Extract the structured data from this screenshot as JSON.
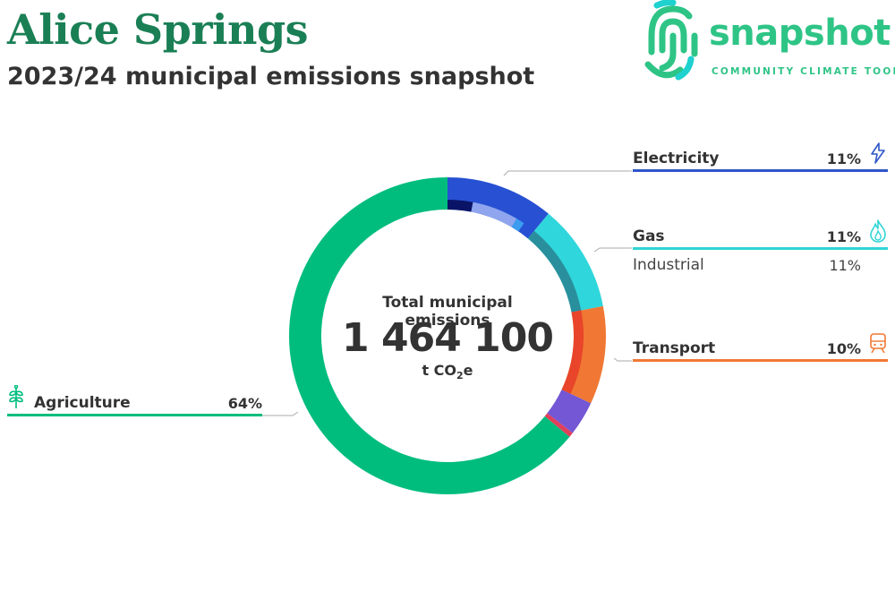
{
  "header": {
    "title": "Alice Springs",
    "subtitle": "2023/24 municipal emissions snapshot"
  },
  "logo": {
    "word": "snapshot",
    "tagline": "COMMUNITY CLIMATE TOOL"
  },
  "center": {
    "title": "Total municipal emissions",
    "value": "1 464 100",
    "unit_prefix": "t CO",
    "unit_sub": "2",
    "unit_suffix": "e"
  },
  "categories": {
    "electricity": {
      "label": "Electricity",
      "pct": "11%",
      "color": "#2e55c9",
      "icon": "lightning-icon"
    },
    "gas": {
      "label": "Gas",
      "pct": "11%",
      "color": "#30d5d5",
      "icon": "flame-icon",
      "sub": {
        "label": "Industrial",
        "pct": "11%"
      }
    },
    "transport": {
      "label": "Transport",
      "pct": "10%",
      "color": "#f07834",
      "icon": "train-icon"
    },
    "agriculture": {
      "label": "Agriculture",
      "pct": "64%",
      "color": "#00bd7e",
      "icon": "plant-icon"
    }
  },
  "chart_data": {
    "type": "pie",
    "title": "Total municipal emissions",
    "total": 1464100,
    "unit": "t CO2e",
    "series": [
      {
        "name": "Electricity",
        "value": 11,
        "color": "#2751d2"
      },
      {
        "name": "Gas",
        "value": 11,
        "color": "#2fd6dc"
      },
      {
        "name": "Transport",
        "value": 10,
        "color": "#f07834"
      },
      {
        "name": "",
        "value": 3.5,
        "color": "#7357d4"
      },
      {
        "name": "",
        "value": 0.5,
        "color": "#e0405a"
      },
      {
        "name": "Agriculture",
        "value": 64,
        "color": "#00bd7e"
      }
    ],
    "inner_rings": [
      {
        "parent": "Electricity",
        "segments": [
          {
            "value": 3.0,
            "color": "#0a1466"
          },
          {
            "value": 5.5,
            "color": "#8fa6ee"
          },
          {
            "value": 1.0,
            "color": "#3b9cf0"
          }
        ]
      },
      {
        "parent": "Gas",
        "segments": [
          {
            "value": 11,
            "color": "#2a8f9c"
          }
        ]
      },
      {
        "parent": "Transport",
        "segments": [
          {
            "value": 10,
            "color": "#e8452a"
          }
        ]
      }
    ]
  }
}
